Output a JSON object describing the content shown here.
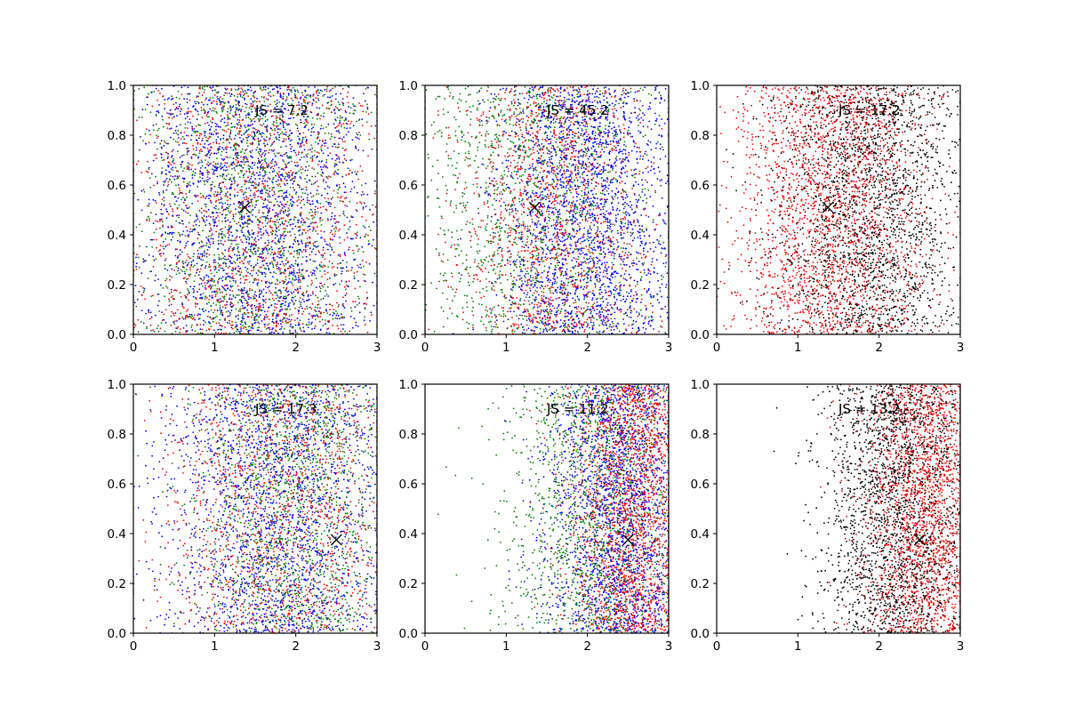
{
  "figure": {
    "background": "#ffffff",
    "colors": {
      "blue": "#0000ff",
      "green": "#008000",
      "red": "#ff0000",
      "black": "#000000"
    }
  },
  "chart_data": [
    {
      "type": "scatter",
      "title": "",
      "xlabel": "",
      "ylabel": "",
      "xlim": [
        0,
        3
      ],
      "ylim": [
        0,
        1
      ],
      "xticks": [
        "0",
        "1",
        "2",
        "3"
      ],
      "yticks": [
        "0.0",
        "0.2",
        "0.4",
        "0.6",
        "0.8",
        "1.0"
      ],
      "annotation": "JS = 7.2",
      "marker": {
        "x": 1.37,
        "y": 0.51,
        "symbol": "x"
      },
      "series": [
        {
          "color": "#0000ff",
          "x_center": 1.5,
          "x_spread": 0.75,
          "density": "high"
        },
        {
          "color": "#008000",
          "x_center": 1.5,
          "x_spread": 0.75,
          "density": "medium"
        },
        {
          "color": "#ff0000",
          "x_center": 1.5,
          "x_spread": 0.8,
          "density": "medium"
        }
      ],
      "grid": false
    },
    {
      "type": "scatter",
      "title": "",
      "xlabel": "",
      "ylabel": "",
      "xlim": [
        0,
        3
      ],
      "ylim": [
        0,
        1
      ],
      "xticks": [
        "0",
        "1",
        "2",
        "3"
      ],
      "yticks": [
        "0.0",
        "0.2",
        "0.4",
        "0.6",
        "0.8",
        "1.0"
      ],
      "annotation": "JS = 45.2",
      "marker": {
        "x": 1.35,
        "y": 0.51,
        "symbol": "x"
      },
      "series": [
        {
          "color": "#0000ff",
          "x_center": 2.0,
          "x_spread": 0.55,
          "density": "high"
        },
        {
          "color": "#008000",
          "x_center": 1.3,
          "x_spread": 0.8,
          "density": "medium"
        },
        {
          "color": "#ff0000",
          "x_center": 1.6,
          "x_spread": 0.6,
          "density": "medium"
        }
      ],
      "grid": false
    },
    {
      "type": "scatter",
      "title": "",
      "xlabel": "",
      "ylabel": "",
      "xlim": [
        0,
        3
      ],
      "ylim": [
        0,
        1
      ],
      "xticks": [
        "0",
        "1",
        "2",
        "3"
      ],
      "yticks": [
        "0.0",
        "0.2",
        "0.4",
        "0.6",
        "0.8",
        "1.0"
      ],
      "annotation": "JS = 17.2",
      "marker": {
        "x": 1.37,
        "y": 0.51,
        "symbol": "x"
      },
      "series": [
        {
          "color": "#ff0000",
          "x_center": 1.4,
          "x_spread": 0.6,
          "density": "high"
        },
        {
          "color": "#000000",
          "x_center": 1.9,
          "x_spread": 0.6,
          "density": "high"
        }
      ],
      "grid": false
    },
    {
      "type": "scatter",
      "title": "",
      "xlabel": "",
      "ylabel": "",
      "xlim": [
        0,
        3
      ],
      "ylim": [
        0,
        1
      ],
      "xticks": [
        "0",
        "1",
        "2",
        "3"
      ],
      "yticks": [
        "0.0",
        "0.2",
        "0.4",
        "0.6",
        "0.8",
        "1.0"
      ],
      "annotation": "JS = 17.3",
      "marker": {
        "x": 2.5,
        "y": 0.375,
        "symbol": "x"
      },
      "series": [
        {
          "color": "#0000ff",
          "x_center": 1.8,
          "x_spread": 0.75,
          "density": "high"
        },
        {
          "color": "#008000",
          "x_center": 2.0,
          "x_spread": 0.65,
          "density": "medium"
        },
        {
          "color": "#ff0000",
          "x_center": 1.8,
          "x_spread": 0.7,
          "density": "medium"
        }
      ],
      "grid": false
    },
    {
      "type": "scatter",
      "title": "",
      "xlabel": "",
      "ylabel": "",
      "xlim": [
        0,
        3
      ],
      "ylim": [
        0,
        1
      ],
      "xticks": [
        "0",
        "1",
        "2",
        "3"
      ],
      "yticks": [
        "0.0",
        "0.2",
        "0.4",
        "0.6",
        "0.8",
        "1.0"
      ],
      "annotation": "JS = 11.2",
      "marker": {
        "x": 2.5,
        "y": 0.375,
        "symbol": "x"
      },
      "series": [
        {
          "color": "#0000ff",
          "x_center": 2.4,
          "x_spread": 0.45,
          "density": "high"
        },
        {
          "color": "#008000",
          "x_center": 2.1,
          "x_spread": 0.55,
          "density": "medium"
        },
        {
          "color": "#ff0000",
          "x_center": 2.6,
          "x_spread": 0.4,
          "density": "high"
        }
      ],
      "grid": false
    },
    {
      "type": "scatter",
      "title": "",
      "xlabel": "",
      "ylabel": "",
      "xlim": [
        0,
        3
      ],
      "ylim": [
        0,
        1
      ],
      "xticks": [
        "0",
        "1",
        "2",
        "3"
      ],
      "yticks": [
        "0.0",
        "0.2",
        "0.4",
        "0.6",
        "0.8",
        "1.0"
      ],
      "annotation": "JS = 13.2",
      "marker": {
        "x": 2.5,
        "y": 0.375,
        "symbol": "x"
      },
      "series": [
        {
          "color": "#ff0000",
          "x_center": 2.6,
          "x_spread": 0.4,
          "density": "high"
        },
        {
          "color": "#000000",
          "x_center": 2.2,
          "x_spread": 0.45,
          "density": "high"
        }
      ],
      "grid": false
    }
  ]
}
